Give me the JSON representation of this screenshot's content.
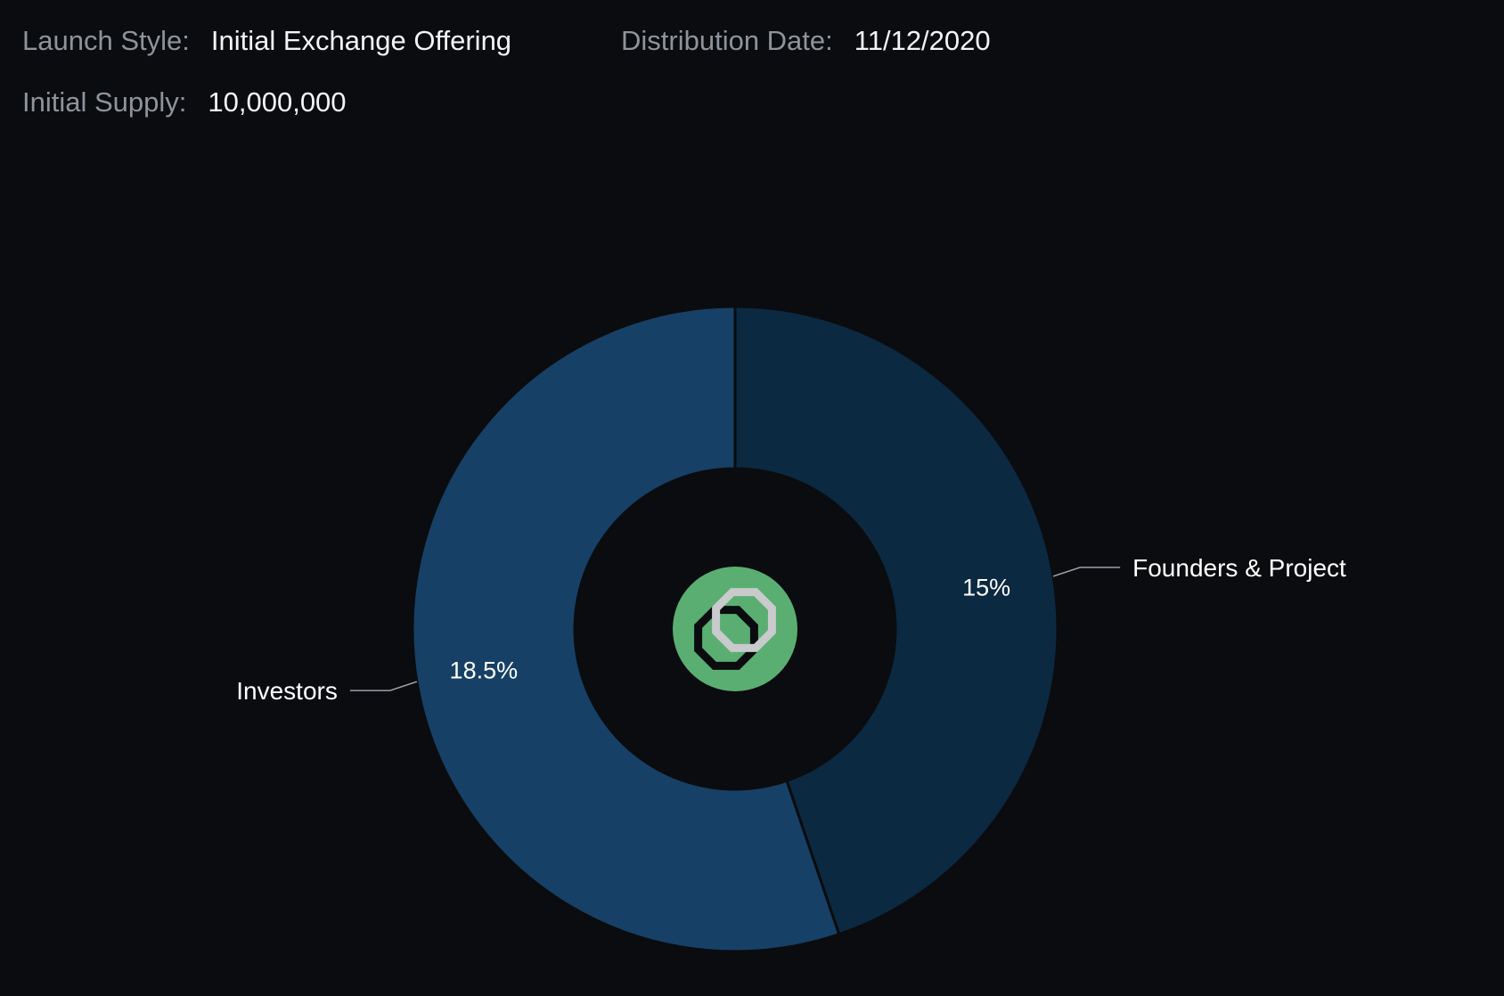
{
  "header": {
    "launch_style_label": "Launch Style:",
    "launch_style_value": "Initial Exchange Offering",
    "distribution_date_label": "Distribution Date:",
    "distribution_date_value": "11/12/2020",
    "initial_supply_label": "Initial Supply:",
    "initial_supply_value": "10,000,000"
  },
  "colors": {
    "background": "#0a0c0f",
    "investors": "#174066",
    "founders": "#0c2942",
    "logo_bg": "#5aae72"
  },
  "logo": {
    "icon": "token-logo-icon"
  },
  "chart_data": {
    "type": "pie",
    "donut": true,
    "slices": [
      {
        "name": "Founders & Project",
        "value": 15,
        "value_label": "15%",
        "color": "#0c2942"
      },
      {
        "name": "Investors",
        "value": 18.5,
        "value_label": "18.5%",
        "color": "#174066"
      }
    ]
  }
}
